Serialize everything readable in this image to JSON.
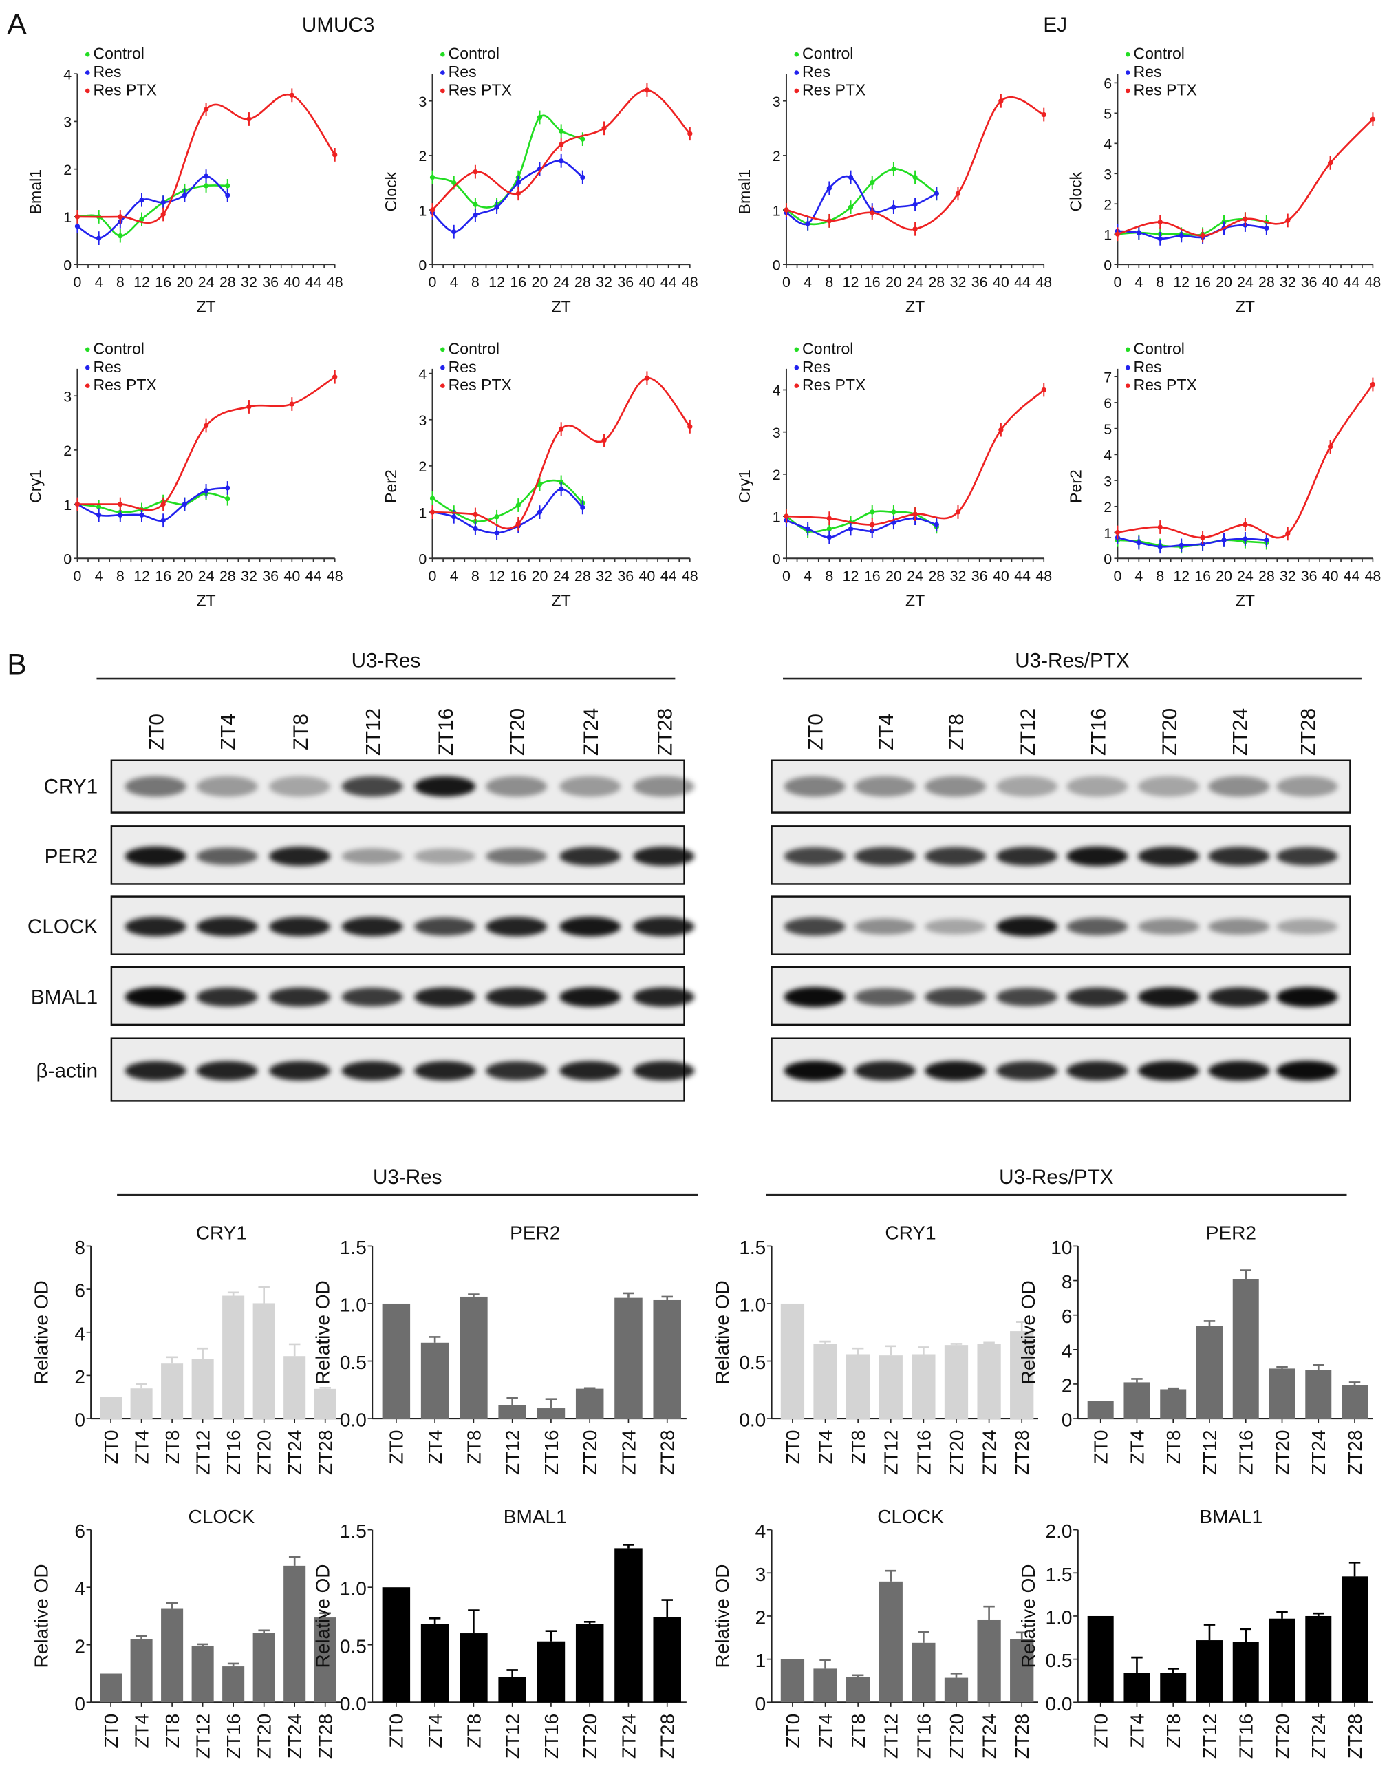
{
  "panel_labels": {
    "a": "A",
    "b": "B"
  },
  "cell_lines": {
    "umuc3": "UMUC3",
    "ej": "EJ"
  },
  "blots": {
    "groups": [
      {
        "title": "U3-Res",
        "lanes": [
          "ZT0",
          "ZT4",
          "ZT8",
          "ZT12",
          "ZT16",
          "ZT20",
          "ZT24",
          "ZT28"
        ]
      },
      {
        "title": "U3-Res/PTX",
        "lanes": [
          "ZT0",
          "ZT4",
          "ZT8",
          "ZT12",
          "ZT16",
          "ZT20",
          "ZT24",
          "ZT28"
        ]
      }
    ],
    "proteins": [
      "CRY1",
      "PER2",
      "CLOCK",
      "BMAL1",
      "β-actin"
    ]
  },
  "quant_groups": [
    "U3-Res",
    "U3-Res/PTX"
  ],
  "chart_data": [
    {
      "type": "line",
      "cell_line": "UMUC3",
      "ylabel": "Bmal1",
      "xlabel": "ZT",
      "xlim": [
        0,
        48
      ],
      "xticks": [
        0,
        4,
        8,
        12,
        16,
        20,
        24,
        28,
        32,
        36,
        40,
        44,
        48
      ],
      "ylim": [
        0,
        4
      ],
      "yticks": [
        0,
        1,
        2,
        3,
        4
      ],
      "series": [
        {
          "name": "Control",
          "color": "#22dd22",
          "x": [
            0,
            4,
            8,
            12,
            16,
            20,
            24,
            28
          ],
          "y": [
            1.0,
            1.0,
            0.6,
            0.95,
            1.3,
            1.55,
            1.65,
            1.65
          ]
        },
        {
          "name": "Res",
          "color": "#2222ee",
          "x": [
            0,
            4,
            8,
            12,
            16,
            20,
            24,
            28
          ],
          "y": [
            0.8,
            0.55,
            0.9,
            1.35,
            1.3,
            1.45,
            1.85,
            1.45
          ]
        },
        {
          "name": "Res PTX",
          "color": "#ee2222",
          "x": [
            0,
            8,
            16,
            24,
            32,
            40,
            48
          ],
          "y": [
            1.0,
            1.0,
            1.05,
            3.25,
            3.05,
            3.55,
            2.3
          ]
        }
      ]
    },
    {
      "type": "line",
      "cell_line": "UMUC3",
      "ylabel": "Clock",
      "xlabel": "ZT",
      "xlim": [
        0,
        48
      ],
      "xticks": [
        0,
        4,
        8,
        12,
        16,
        20,
        24,
        28,
        32,
        36,
        40,
        44,
        48
      ],
      "ylim": [
        0,
        3.5
      ],
      "yticks": [
        0,
        1,
        2,
        3
      ],
      "series": [
        {
          "name": "Control",
          "color": "#22dd22",
          "x": [
            0,
            4,
            8,
            12,
            16,
            20,
            24,
            28
          ],
          "y": [
            1.6,
            1.5,
            1.1,
            1.1,
            1.6,
            2.7,
            2.45,
            2.3
          ]
        },
        {
          "name": "Res",
          "color": "#2222ee",
          "x": [
            0,
            4,
            8,
            12,
            16,
            20,
            24,
            28
          ],
          "y": [
            0.95,
            0.6,
            0.9,
            1.05,
            1.5,
            1.75,
            1.9,
            1.6
          ]
        },
        {
          "name": "Res PTX",
          "color": "#ee2222",
          "x": [
            0,
            8,
            16,
            24,
            32,
            40,
            48
          ],
          "y": [
            1.0,
            1.7,
            1.3,
            2.2,
            2.5,
            3.2,
            2.4
          ]
        }
      ]
    },
    {
      "type": "line",
      "cell_line": "EJ",
      "ylabel": "Bmal1",
      "xlabel": "ZT",
      "xlim": [
        0,
        48
      ],
      "xticks": [
        0,
        4,
        8,
        12,
        16,
        20,
        24,
        28,
        32,
        36,
        40,
        44,
        48
      ],
      "ylim": [
        0,
        3.5
      ],
      "yticks": [
        0,
        1,
        2,
        3
      ],
      "series": [
        {
          "name": "Control",
          "color": "#22dd22",
          "x": [
            0,
            4,
            8,
            12,
            16,
            20,
            24,
            28
          ],
          "y": [
            1.0,
            0.75,
            0.8,
            1.05,
            1.5,
            1.75,
            1.6,
            1.3
          ]
        },
        {
          "name": "Res",
          "color": "#2222ee",
          "x": [
            0,
            4,
            8,
            12,
            16,
            20,
            24,
            28
          ],
          "y": [
            0.95,
            0.75,
            1.4,
            1.6,
            1.0,
            1.05,
            1.1,
            1.3
          ]
        },
        {
          "name": "Res PTX",
          "color": "#ee2222",
          "x": [
            0,
            8,
            16,
            24,
            32,
            40,
            48
          ],
          "y": [
            1.0,
            0.8,
            0.95,
            0.65,
            1.3,
            3.0,
            2.75
          ]
        }
      ]
    },
    {
      "type": "line",
      "cell_line": "EJ",
      "ylabel": "Clock",
      "xlabel": "ZT",
      "xlim": [
        0,
        48
      ],
      "xticks": [
        0,
        4,
        8,
        12,
        16,
        20,
        24,
        28,
        32,
        36,
        40,
        44,
        48
      ],
      "ylim": [
        0,
        6.3
      ],
      "yticks": [
        0,
        1,
        2,
        3,
        4,
        5,
        6
      ],
      "series": [
        {
          "name": "Control",
          "color": "#22dd22",
          "x": [
            0,
            4,
            8,
            12,
            16,
            20,
            24,
            28
          ],
          "y": [
            1.0,
            1.05,
            1.0,
            1.0,
            1.0,
            1.4,
            1.5,
            1.4
          ]
        },
        {
          "name": "Res",
          "color": "#2222ee",
          "x": [
            0,
            4,
            8,
            12,
            16,
            20,
            24,
            28
          ],
          "y": [
            1.1,
            1.05,
            0.85,
            0.95,
            0.9,
            1.2,
            1.3,
            1.2
          ]
        },
        {
          "name": "Res PTX",
          "color": "#ee2222",
          "x": [
            0,
            8,
            16,
            24,
            32,
            40,
            48
          ],
          "y": [
            1.0,
            1.4,
            0.95,
            1.5,
            1.45,
            3.35,
            4.8
          ]
        }
      ]
    },
    {
      "type": "line",
      "cell_line": "UMUC3",
      "ylabel": "Cry1",
      "xlabel": "ZT",
      "xlim": [
        0,
        48
      ],
      "xticks": [
        0,
        4,
        8,
        12,
        16,
        20,
        24,
        28,
        32,
        36,
        40,
        44,
        48
      ],
      "ylim": [
        0,
        3.5
      ],
      "yticks": [
        0,
        1,
        2,
        3
      ],
      "series": [
        {
          "name": "Control",
          "color": "#22dd22",
          "x": [
            0,
            4,
            8,
            12,
            16,
            20,
            24,
            28
          ],
          "y": [
            1.0,
            0.95,
            0.85,
            0.9,
            1.05,
            1.0,
            1.2,
            1.1
          ]
        },
        {
          "name": "Res",
          "color": "#2222ee",
          "x": [
            0,
            4,
            8,
            12,
            16,
            20,
            24,
            28
          ],
          "y": [
            1.0,
            0.8,
            0.8,
            0.8,
            0.7,
            1.0,
            1.25,
            1.3
          ]
        },
        {
          "name": "Res PTX",
          "color": "#ee2222",
          "x": [
            0,
            8,
            16,
            24,
            32,
            40,
            48
          ],
          "y": [
            1.0,
            1.0,
            1.0,
            2.45,
            2.8,
            2.85,
            3.35
          ]
        }
      ]
    },
    {
      "type": "line",
      "cell_line": "UMUC3",
      "ylabel": "Per2",
      "xlabel": "ZT",
      "xlim": [
        0,
        48
      ],
      "xticks": [
        0,
        4,
        8,
        12,
        16,
        20,
        24,
        28,
        32,
        36,
        40,
        44,
        48
      ],
      "ylim": [
        0,
        4.1
      ],
      "yticks": [
        0,
        1,
        2,
        3,
        4
      ],
      "series": [
        {
          "name": "Control",
          "color": "#22dd22",
          "x": [
            0,
            4,
            8,
            12,
            16,
            20,
            24,
            28
          ],
          "y": [
            1.3,
            1.0,
            0.8,
            0.9,
            1.15,
            1.6,
            1.65,
            1.2
          ]
        },
        {
          "name": "Res",
          "color": "#2222ee",
          "x": [
            0,
            4,
            8,
            12,
            16,
            20,
            24,
            28
          ],
          "y": [
            1.0,
            0.9,
            0.65,
            0.55,
            0.7,
            1.0,
            1.5,
            1.1
          ]
        },
        {
          "name": "Res PTX",
          "color": "#ee2222",
          "x": [
            0,
            8,
            16,
            24,
            32,
            40,
            48
          ],
          "y": [
            1.0,
            0.95,
            0.75,
            2.8,
            2.55,
            3.9,
            2.85
          ]
        }
      ]
    },
    {
      "type": "line",
      "cell_line": "EJ",
      "ylabel": "Cry1",
      "xlabel": "ZT",
      "xlim": [
        0,
        48
      ],
      "xticks": [
        0,
        4,
        8,
        12,
        16,
        20,
        24,
        28,
        32,
        36,
        40,
        44,
        48
      ],
      "ylim": [
        0,
        4.5
      ],
      "yticks": [
        0,
        1,
        2,
        3,
        4
      ],
      "series": [
        {
          "name": "Control",
          "color": "#22dd22",
          "x": [
            0,
            4,
            8,
            12,
            16,
            20,
            24,
            28
          ],
          "y": [
            1.0,
            0.65,
            0.7,
            0.85,
            1.1,
            1.1,
            1.05,
            0.75
          ]
        },
        {
          "name": "Res",
          "color": "#2222ee",
          "x": [
            0,
            4,
            8,
            12,
            16,
            20,
            24,
            28
          ],
          "y": [
            0.9,
            0.7,
            0.5,
            0.7,
            0.65,
            0.85,
            0.95,
            0.8
          ]
        },
        {
          "name": "Res PTX",
          "color": "#ee2222",
          "x": [
            0,
            8,
            16,
            24,
            32,
            40,
            48
          ],
          "y": [
            1.0,
            0.95,
            0.8,
            1.05,
            1.1,
            3.05,
            4.0
          ]
        }
      ]
    },
    {
      "type": "line",
      "cell_line": "EJ",
      "ylabel": "Per2",
      "xlabel": "ZT",
      "xlim": [
        0,
        48
      ],
      "xticks": [
        0,
        4,
        8,
        12,
        16,
        20,
        24,
        28,
        32,
        36,
        40,
        44,
        48
      ],
      "ylim": [
        0,
        7.3
      ],
      "yticks": [
        0,
        1,
        2,
        3,
        4,
        5,
        6,
        7
      ],
      "series": [
        {
          "name": "Control",
          "color": "#22dd22",
          "x": [
            0,
            4,
            8,
            12,
            16,
            20,
            24,
            28
          ],
          "y": [
            0.7,
            0.65,
            0.5,
            0.45,
            0.55,
            0.7,
            0.65,
            0.6
          ]
        },
        {
          "name": "Res",
          "color": "#2222ee",
          "x": [
            0,
            4,
            8,
            12,
            16,
            20,
            24,
            28
          ],
          "y": [
            0.8,
            0.6,
            0.45,
            0.5,
            0.55,
            0.7,
            0.75,
            0.7
          ]
        },
        {
          "name": "Res PTX",
          "color": "#ee2222",
          "x": [
            0,
            8,
            16,
            24,
            32,
            40,
            48
          ],
          "y": [
            1.0,
            1.2,
            0.8,
            1.3,
            0.95,
            4.3,
            6.7
          ]
        }
      ]
    },
    {
      "type": "bar",
      "group": "U3-Res",
      "title": "CRY1",
      "ylabel": "Relative OD",
      "color": "#d4d4d4",
      "categories": [
        "ZT0",
        "ZT4",
        "ZT8",
        "ZT12",
        "ZT16",
        "ZT20",
        "ZT24",
        "ZT28"
      ],
      "values": [
        1,
        1.4,
        2.55,
        2.75,
        5.7,
        5.35,
        2.9,
        1.38
      ],
      "errors": [
        0,
        0.2,
        0.3,
        0.5,
        0.15,
        0.75,
        0.55,
        0.05
      ],
      "ylim": [
        0,
        8
      ],
      "yticks": [
        "0",
        "2",
        "4",
        "6",
        "8"
      ]
    },
    {
      "type": "bar",
      "group": "U3-Res",
      "title": "PER2",
      "ylabel": "Relative OD",
      "color": "#6e6e6e",
      "categories": [
        "ZT0",
        "ZT4",
        "ZT8",
        "ZT12",
        "ZT16",
        "ZT20",
        "ZT24",
        "ZT28"
      ],
      "values": [
        1.0,
        0.66,
        1.06,
        0.12,
        0.09,
        0.26,
        1.05,
        1.03
      ],
      "errors": [
        0,
        0.05,
        0.02,
        0.06,
        0.08,
        0.005,
        0.04,
        0.03
      ],
      "ylim": [
        0,
        1.5
      ],
      "yticks": [
        "0.0",
        "0.5",
        "1.0",
        "1.5"
      ]
    },
    {
      "type": "bar",
      "group": "U3-Res/PTX",
      "title": "CRY1",
      "ylabel": "Relative OD",
      "color": "#d4d4d4",
      "categories": [
        "ZT0",
        "ZT4",
        "ZT8",
        "ZT12",
        "ZT16",
        "ZT20",
        "ZT24",
        "ZT28"
      ],
      "values": [
        1,
        0.65,
        0.56,
        0.55,
        0.56,
        0.64,
        0.65,
        0.76
      ],
      "errors": [
        0,
        0.02,
        0.05,
        0.08,
        0.06,
        0.01,
        0.01,
        0.08
      ],
      "ylim": [
        0,
        1.5
      ],
      "yticks": [
        "0.0",
        "0.5",
        "1.0",
        "1.5"
      ]
    },
    {
      "type": "bar",
      "group": "U3-Res/PTX",
      "title": "PER2",
      "ylabel": "Relative OD",
      "color": "#6e6e6e",
      "categories": [
        "ZT0",
        "ZT4",
        "ZT8",
        "ZT12",
        "ZT16",
        "ZT20",
        "ZT24",
        "ZT28"
      ],
      "values": [
        1,
        2.1,
        1.7,
        5.35,
        8.1,
        2.9,
        2.8,
        1.95
      ],
      "errors": [
        0,
        0.2,
        0.05,
        0.3,
        0.5,
        0.1,
        0.3,
        0.15
      ],
      "ylim": [
        0,
        10
      ],
      "yticks": [
        "0",
        "2",
        "4",
        "6",
        "8",
        "10"
      ]
    },
    {
      "type": "bar",
      "group": "U3-Res",
      "title": "CLOCK",
      "ylabel": "Relative OD",
      "color": "#6e6e6e",
      "categories": [
        "ZT0",
        "ZT4",
        "ZT8",
        "ZT12",
        "ZT16",
        "ZT20",
        "ZT24",
        "ZT28"
      ],
      "values": [
        1,
        2.2,
        3.25,
        1.97,
        1.25,
        2.42,
        4.75,
        2.95
      ],
      "errors": [
        0,
        0.1,
        0.2,
        0.05,
        0.1,
        0.08,
        0.3,
        0.15
      ],
      "ylim": [
        0,
        6
      ],
      "yticks": [
        "0",
        "2",
        "4",
        "6"
      ]
    },
    {
      "type": "bar",
      "group": "U3-Res",
      "title": "BMAL1",
      "ylabel": "Relative OD",
      "color": "#000000",
      "categories": [
        "ZT0",
        "ZT4",
        "ZT8",
        "ZT12",
        "ZT16",
        "ZT20",
        "ZT24",
        "ZT28"
      ],
      "values": [
        1,
        0.68,
        0.6,
        0.22,
        0.53,
        0.68,
        1.34,
        0.74
      ],
      "errors": [
        0,
        0.05,
        0.2,
        0.06,
        0.09,
        0.02,
        0.03,
        0.15
      ],
      "ylim": [
        0,
        1.5
      ],
      "yticks": [
        "0.0",
        "0.5",
        "1.0",
        "1.5"
      ]
    },
    {
      "type": "bar",
      "group": "U3-Res/PTX",
      "title": "CLOCK",
      "ylabel": "Relative OD",
      "color": "#6e6e6e",
      "categories": [
        "ZT0",
        "ZT4",
        "ZT8",
        "ZT12",
        "ZT16",
        "ZT20",
        "ZT24",
        "ZT28"
      ],
      "values": [
        1,
        0.78,
        0.58,
        2.8,
        1.38,
        0.57,
        1.92,
        1.47
      ],
      "errors": [
        0,
        0.2,
        0.05,
        0.25,
        0.25,
        0.1,
        0.3,
        0.15
      ],
      "ylim": [
        0,
        4
      ],
      "yticks": [
        "0",
        "1",
        "2",
        "3",
        "4"
      ]
    },
    {
      "type": "bar",
      "group": "U3-Res/PTX",
      "title": "BMAL1",
      "ylabel": "Relative OD",
      "color": "#000000",
      "categories": [
        "ZT0",
        "ZT4",
        "ZT8",
        "ZT12",
        "ZT16",
        "ZT20",
        "ZT24",
        "ZT28"
      ],
      "values": [
        1,
        0.34,
        0.34,
        0.72,
        0.7,
        0.97,
        1.0,
        1.46
      ],
      "errors": [
        0,
        0.18,
        0.05,
        0.18,
        0.15,
        0.08,
        0.03,
        0.16
      ],
      "ylim": [
        0,
        2.0
      ],
      "yticks": [
        "0.0",
        "0.5",
        "1.0",
        "1.5",
        "2.0"
      ]
    }
  ]
}
